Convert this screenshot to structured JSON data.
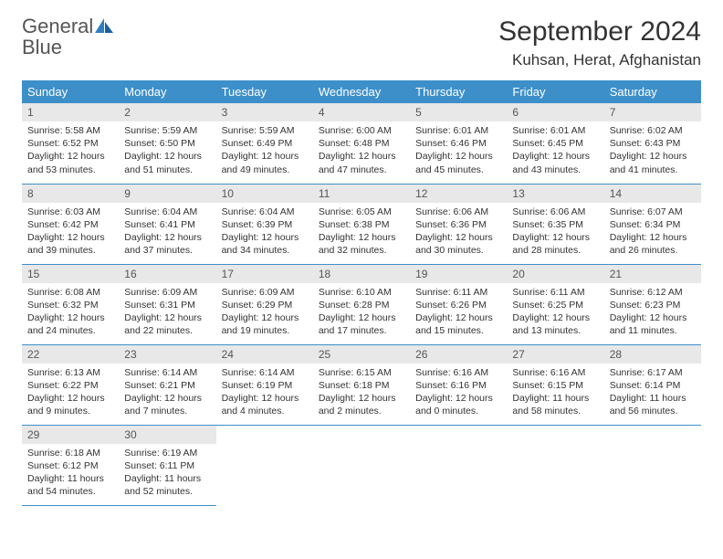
{
  "logo": {
    "word1": "General",
    "word2": "Blue"
  },
  "title": "September 2024",
  "location": "Kuhsan, Herat, Afghanistan",
  "colors": {
    "header_bg": "#3d8fc9",
    "header_text": "#ffffff",
    "daynum_bg": "#e8e8e8",
    "row_border": "#3d8fc9",
    "body_text": "#333333",
    "logo_gray": "#555555",
    "logo_blue": "#2f7fc1"
  },
  "weekdays": [
    "Sunday",
    "Monday",
    "Tuesday",
    "Wednesday",
    "Thursday",
    "Friday",
    "Saturday"
  ],
  "days": [
    {
      "n": 1,
      "sr": "5:58 AM",
      "ss": "6:52 PM",
      "dl": "12 hours and 53 minutes."
    },
    {
      "n": 2,
      "sr": "5:59 AM",
      "ss": "6:50 PM",
      "dl": "12 hours and 51 minutes."
    },
    {
      "n": 3,
      "sr": "5:59 AM",
      "ss": "6:49 PM",
      "dl": "12 hours and 49 minutes."
    },
    {
      "n": 4,
      "sr": "6:00 AM",
      "ss": "6:48 PM",
      "dl": "12 hours and 47 minutes."
    },
    {
      "n": 5,
      "sr": "6:01 AM",
      "ss": "6:46 PM",
      "dl": "12 hours and 45 minutes."
    },
    {
      "n": 6,
      "sr": "6:01 AM",
      "ss": "6:45 PM",
      "dl": "12 hours and 43 minutes."
    },
    {
      "n": 7,
      "sr": "6:02 AM",
      "ss": "6:43 PM",
      "dl": "12 hours and 41 minutes."
    },
    {
      "n": 8,
      "sr": "6:03 AM",
      "ss": "6:42 PM",
      "dl": "12 hours and 39 minutes."
    },
    {
      "n": 9,
      "sr": "6:04 AM",
      "ss": "6:41 PM",
      "dl": "12 hours and 37 minutes."
    },
    {
      "n": 10,
      "sr": "6:04 AM",
      "ss": "6:39 PM",
      "dl": "12 hours and 34 minutes."
    },
    {
      "n": 11,
      "sr": "6:05 AM",
      "ss": "6:38 PM",
      "dl": "12 hours and 32 minutes."
    },
    {
      "n": 12,
      "sr": "6:06 AM",
      "ss": "6:36 PM",
      "dl": "12 hours and 30 minutes."
    },
    {
      "n": 13,
      "sr": "6:06 AM",
      "ss": "6:35 PM",
      "dl": "12 hours and 28 minutes."
    },
    {
      "n": 14,
      "sr": "6:07 AM",
      "ss": "6:34 PM",
      "dl": "12 hours and 26 minutes."
    },
    {
      "n": 15,
      "sr": "6:08 AM",
      "ss": "6:32 PM",
      "dl": "12 hours and 24 minutes."
    },
    {
      "n": 16,
      "sr": "6:09 AM",
      "ss": "6:31 PM",
      "dl": "12 hours and 22 minutes."
    },
    {
      "n": 17,
      "sr": "6:09 AM",
      "ss": "6:29 PM",
      "dl": "12 hours and 19 minutes."
    },
    {
      "n": 18,
      "sr": "6:10 AM",
      "ss": "6:28 PM",
      "dl": "12 hours and 17 minutes."
    },
    {
      "n": 19,
      "sr": "6:11 AM",
      "ss": "6:26 PM",
      "dl": "12 hours and 15 minutes."
    },
    {
      "n": 20,
      "sr": "6:11 AM",
      "ss": "6:25 PM",
      "dl": "12 hours and 13 minutes."
    },
    {
      "n": 21,
      "sr": "6:12 AM",
      "ss": "6:23 PM",
      "dl": "12 hours and 11 minutes."
    },
    {
      "n": 22,
      "sr": "6:13 AM",
      "ss": "6:22 PM",
      "dl": "12 hours and 9 minutes."
    },
    {
      "n": 23,
      "sr": "6:14 AM",
      "ss": "6:21 PM",
      "dl": "12 hours and 7 minutes."
    },
    {
      "n": 24,
      "sr": "6:14 AM",
      "ss": "6:19 PM",
      "dl": "12 hours and 4 minutes."
    },
    {
      "n": 25,
      "sr": "6:15 AM",
      "ss": "6:18 PM",
      "dl": "12 hours and 2 minutes."
    },
    {
      "n": 26,
      "sr": "6:16 AM",
      "ss": "6:16 PM",
      "dl": "12 hours and 0 minutes."
    },
    {
      "n": 27,
      "sr": "6:16 AM",
      "ss": "6:15 PM",
      "dl": "11 hours and 58 minutes."
    },
    {
      "n": 28,
      "sr": "6:17 AM",
      "ss": "6:14 PM",
      "dl": "11 hours and 56 minutes."
    },
    {
      "n": 29,
      "sr": "6:18 AM",
      "ss": "6:12 PM",
      "dl": "11 hours and 54 minutes."
    },
    {
      "n": 30,
      "sr": "6:19 AM",
      "ss": "6:11 PM",
      "dl": "11 hours and 52 minutes."
    }
  ],
  "labels": {
    "sunrise": "Sunrise:",
    "sunset": "Sunset:",
    "daylight": "Daylight:"
  },
  "layout": {
    "start_weekday": 0,
    "cols": 7,
    "rows": 5
  }
}
